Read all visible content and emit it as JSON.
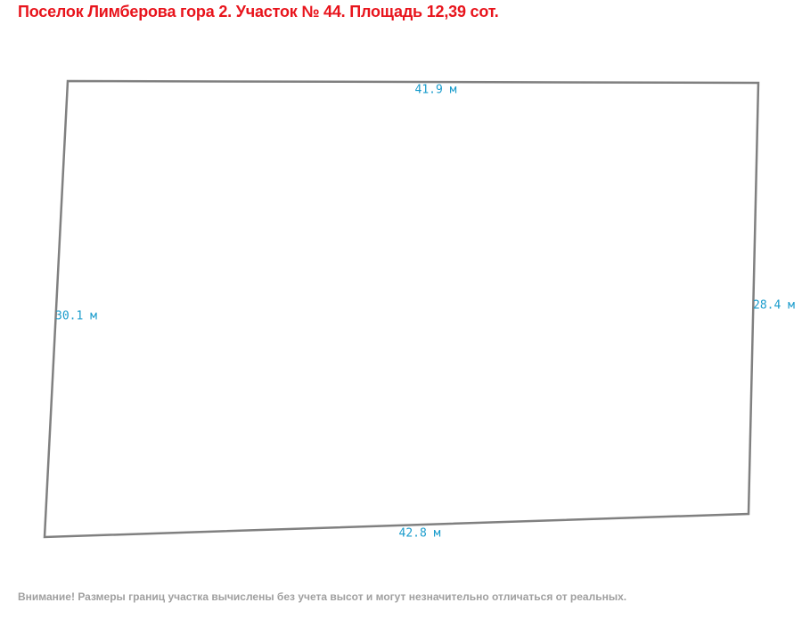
{
  "header": {
    "title": "Поселок Лимберова гора 2. Участок № 44. Площадь 12,39 сот."
  },
  "plot": {
    "edges": [
      {
        "label": "41.9 м"
      },
      {
        "label": "28.4 м"
      },
      {
        "label": "42.8 м"
      },
      {
        "label": "30.1 м"
      }
    ]
  },
  "footer": {
    "note": "Внимание! Размеры границ участка вычислены без учета высот и могут незначительно отличаться от реальных."
  }
}
